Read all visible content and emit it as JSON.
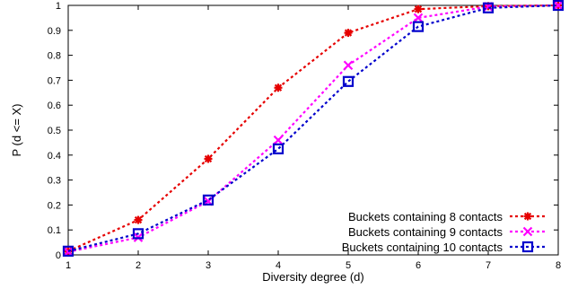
{
  "chart_data": {
    "type": "line",
    "title": "",
    "xlabel": "Diversity degree (d)",
    "ylabel": "P (d <= X)",
    "xlim": [
      1,
      8
    ],
    "ylim": [
      0,
      1
    ],
    "x_ticks": [
      "1",
      "2",
      "3",
      "4",
      "5",
      "6",
      "7",
      "8"
    ],
    "y_ticks": [
      "0",
      "0.1",
      "0.2",
      "0.3",
      "0.4",
      "0.5",
      "0.6",
      "0.7",
      "0.8",
      "0.9",
      "1"
    ],
    "grid": false,
    "legend_position": "bottom-right",
    "x": [
      1,
      2,
      3,
      4,
      5,
      6,
      7,
      8
    ],
    "series": [
      {
        "name": "Buckets containing 8 contacts",
        "color": "#e60000",
        "marker": "star",
        "values": [
          0.015,
          0.14,
          0.385,
          0.67,
          0.89,
          0.985,
          0.997,
          1.0
        ]
      },
      {
        "name": "Buckets containing 9 contacts",
        "color": "#ff00ff",
        "marker": "x",
        "values": [
          0.012,
          0.07,
          0.215,
          0.46,
          0.76,
          0.95,
          0.995,
          1.0
        ]
      },
      {
        "name": "Buckets containing 10 contacts",
        "color": "#0000cc",
        "marker": "square",
        "values": [
          0.015,
          0.085,
          0.22,
          0.425,
          0.695,
          0.915,
          0.99,
          1.0
        ]
      }
    ]
  }
}
